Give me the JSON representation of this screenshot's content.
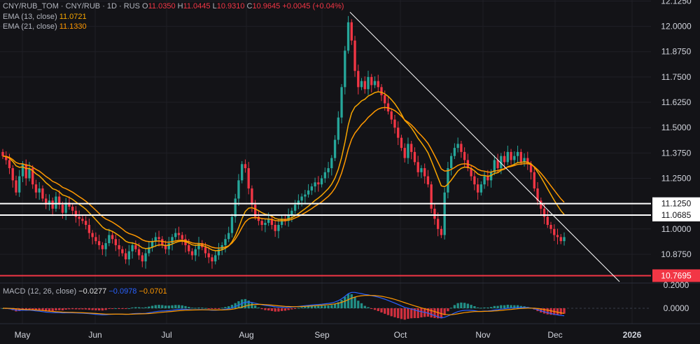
{
  "legend": {
    "symbol": "CNY/RUB_TOM · CNY/RUB · 1D · RUS",
    "o_label": "O",
    "o_value": "11.0350",
    "h_label": "H",
    "h_value": "11.0445",
    "l_label": "L",
    "l_value": "10.9310",
    "c_label": "C",
    "c_value": "10.9645",
    "change": "+0.0045 (+0.04%)",
    "ema13_label": "EMA (13, close)",
    "ema13_value": "11.0721",
    "ema21_label": "EMA (21, close)",
    "ema21_value": "11.1330",
    "macd_label": "MACD (12, 26, close)",
    "macd_hist": "−0.0277",
    "macd_line": "−0.0978",
    "macd_signal": "−0.0701"
  },
  "colors": {
    "up": "#26a69a",
    "down": "#f23645",
    "ema13": "#f7a600",
    "ema21": "#ff9800",
    "macd": "#2962ff",
    "signal": "#ff9800",
    "level_line": "#ffffff",
    "support": "#f23645"
  },
  "chart_data": {
    "type": "candlestick",
    "x_labels": [
      "May",
      "Jun",
      "Jul",
      "Aug",
      "Sep",
      "Oct",
      "Nov",
      "Dec",
      "2026"
    ],
    "y_ticks": [
      "12.1250",
      "12.0000",
      "11.8750",
      "11.7500",
      "11.6250",
      "11.5000",
      "11.3750",
      "11.2500",
      "11.1250",
      "11.0685",
      "11.0000",
      "10.8750",
      "10.7695"
    ],
    "y_range": [
      10.74,
      12.13
    ],
    "horizontal_levels": [
      11.125,
      11.0685,
      10.7695
    ],
    "trendline": {
      "from": [
        "2025-09-11",
        12.07
      ],
      "to": [
        "2025-12-31",
        10.74
      ]
    },
    "macd_ticks": [
      "0.2000",
      "0.0000"
    ],
    "price_closes": [
      11.36,
      11.34,
      11.3,
      11.24,
      11.18,
      11.26,
      11.32,
      11.25,
      11.3,
      11.22,
      11.18,
      11.2,
      11.15,
      11.12,
      11.14,
      11.1,
      11.16,
      11.12,
      11.08,
      11.13,
      11.11,
      11.09,
      11.06,
      11.05,
      11.04,
      11.02,
      10.98,
      10.96,
      10.94,
      10.92,
      10.9,
      10.93,
      10.97,
      10.95,
      10.92,
      10.9,
      10.88,
      10.85,
      10.89,
      10.92,
      10.9,
      10.87,
      10.84,
      10.88,
      10.91,
      10.94,
      10.96,
      10.95,
      10.92,
      10.9,
      10.93,
      10.96,
      10.98,
      10.97,
      10.95,
      10.92,
      10.89,
      10.87,
      10.9,
      10.93,
      10.91,
      10.88,
      10.86,
      10.84,
      10.87,
      10.9,
      10.92,
      10.95,
      10.98,
      11.06,
      11.15,
      11.24,
      11.32,
      11.3,
      11.2,
      11.12,
      11.06,
      11.04,
      11.02,
      11.03,
      11.05,
      11.02,
      10.99,
      11.02,
      11.05,
      11.04,
      11.07,
      11.09,
      11.12,
      11.14,
      11.16,
      11.17,
      11.19,
      11.21,
      11.23,
      11.22,
      11.25,
      11.28,
      11.3,
      11.35,
      11.44,
      11.55,
      11.7,
      11.88,
      12.02,
      11.93,
      11.78,
      11.7,
      11.73,
      11.69,
      11.75,
      11.71,
      11.73,
      11.7,
      11.66,
      11.62,
      11.58,
      11.54,
      11.5,
      11.45,
      11.4,
      11.35,
      11.42,
      11.38,
      11.33,
      11.28,
      11.3,
      11.26,
      11.22,
      11.1,
      11.05,
      11.0,
      10.97,
      11.18,
      11.3,
      11.36,
      11.4,
      11.42,
      11.38,
      11.34,
      11.3,
      11.26,
      11.22,
      11.18,
      11.22,
      11.26,
      11.24,
      11.28,
      11.34,
      11.3,
      11.36,
      11.33,
      11.38,
      11.34,
      11.36,
      11.38,
      11.33,
      11.35,
      11.32,
      11.28,
      11.2,
      11.14,
      11.1,
      11.06,
      11.02,
      11.0,
      10.97,
      10.96,
      10.94,
      10.96
    ]
  }
}
